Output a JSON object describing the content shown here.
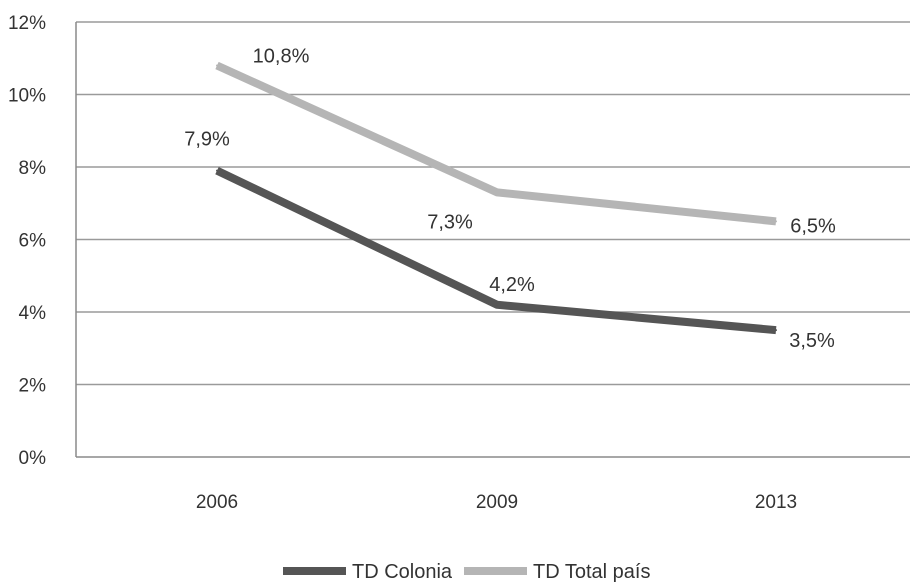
{
  "chart_data": {
    "type": "line",
    "categories": [
      "2006",
      "2009",
      "2013"
    ],
    "series": [
      {
        "name": "TD Colonia",
        "values": [
          7.9,
          4.2,
          3.5
        ],
        "labels": [
          "7,9%",
          "4,2%",
          "3,5%"
        ],
        "color": "#555555"
      },
      {
        "name": "TD Total país",
        "values": [
          10.8,
          7.3,
          6.5
        ],
        "labels": [
          "10,8%",
          "7,3%",
          "6,5%"
        ],
        "color": "#b5b5b5"
      }
    ],
    "y_ticks": [
      {
        "value": 0,
        "label": "0%"
      },
      {
        "value": 2,
        "label": "2%"
      },
      {
        "value": 4,
        "label": "4%"
      },
      {
        "value": 6,
        "label": "6%"
      },
      {
        "value": 8,
        "label": "8%"
      },
      {
        "value": 10,
        "label": "10%"
      },
      {
        "value": 12,
        "label": "12%"
      }
    ],
    "ylim": [
      0,
      12
    ],
    "grid": true,
    "legend_position": "bottom"
  }
}
